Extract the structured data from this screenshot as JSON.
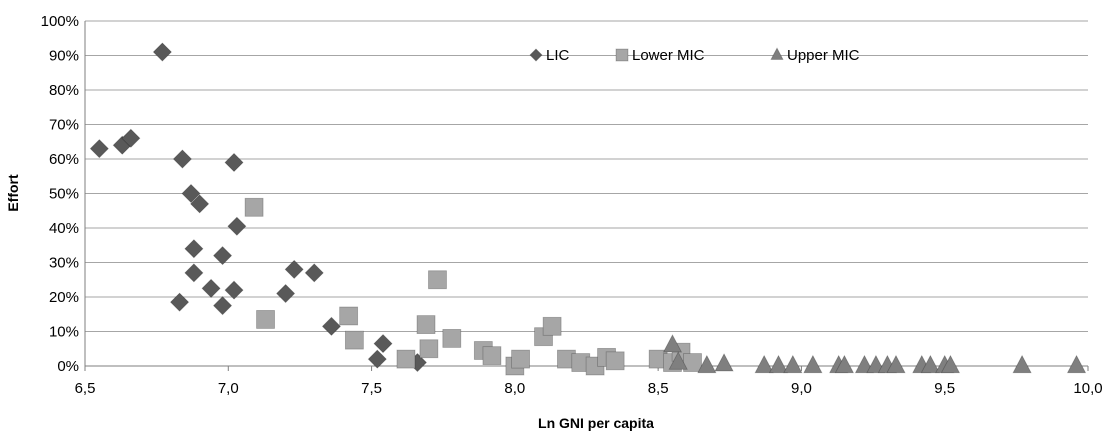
{
  "chart_data": {
    "type": "scatter",
    "xlabel": "Ln GNI per capita",
    "ylabel": "Effort",
    "xlim": [
      6.5,
      10.0
    ],
    "ylim": [
      0,
      100
    ],
    "x_ticks": [
      "6,5",
      "7,0",
      "7,5",
      "8,0",
      "8,5",
      "9,0",
      "9,5",
      "10,0"
    ],
    "y_ticks": [
      "0%",
      "10%",
      "20%",
      "30%",
      "40%",
      "50%",
      "60%",
      "70%",
      "80%",
      "90%",
      "100%"
    ],
    "grid": "horizontal",
    "legend_position": "top-right",
    "series": [
      {
        "name": "LIC",
        "marker": "diamond",
        "color": "#595959",
        "points": [
          [
            6.55,
            63
          ],
          [
            6.63,
            64
          ],
          [
            6.66,
            66
          ],
          [
            6.77,
            91
          ],
          [
            6.84,
            60
          ],
          [
            6.87,
            50
          ],
          [
            6.9,
            47
          ],
          [
            6.88,
            34
          ],
          [
            6.88,
            27
          ],
          [
            6.83,
            18.5
          ],
          [
            6.94,
            22.5
          ],
          [
            6.98,
            32
          ],
          [
            6.98,
            17.5
          ],
          [
            7.02,
            59
          ],
          [
            7.03,
            40.5
          ],
          [
            7.02,
            22
          ],
          [
            7.2,
            21
          ],
          [
            7.23,
            28
          ],
          [
            7.3,
            27
          ],
          [
            7.36,
            11.5
          ],
          [
            7.52,
            2
          ],
          [
            7.54,
            6.5
          ],
          [
            7.66,
            1
          ]
        ]
      },
      {
        "name": "Lower MIC",
        "marker": "square",
        "color": "#a6a6a6",
        "points": [
          [
            7.09,
            46
          ],
          [
            7.13,
            13.5
          ],
          [
            7.42,
            14.5
          ],
          [
            7.44,
            7.5
          ],
          [
            7.62,
            2
          ],
          [
            7.69,
            12
          ],
          [
            7.7,
            5
          ],
          [
            7.73,
            25
          ],
          [
            7.78,
            8
          ],
          [
            7.89,
            4.5
          ],
          [
            7.92,
            3
          ],
          [
            8.0,
            0
          ],
          [
            8.02,
            2
          ],
          [
            8.1,
            8.5
          ],
          [
            8.13,
            11.5
          ],
          [
            8.18,
            2
          ],
          [
            8.23,
            1
          ],
          [
            8.28,
            0
          ],
          [
            8.32,
            2.5
          ],
          [
            8.35,
            1.5
          ],
          [
            8.5,
            2
          ],
          [
            8.55,
            1
          ],
          [
            8.58,
            4
          ],
          [
            8.62,
            1
          ]
        ]
      },
      {
        "name": "Upper MIC",
        "marker": "triangle",
        "color": "#7f7f7f",
        "points": [
          [
            8.55,
            6
          ],
          [
            8.57,
            1
          ],
          [
            8.67,
            0
          ],
          [
            8.73,
            0.5
          ],
          [
            8.87,
            0
          ],
          [
            8.92,
            0
          ],
          [
            8.97,
            0
          ],
          [
            9.04,
            0
          ],
          [
            9.13,
            0
          ],
          [
            9.15,
            0
          ],
          [
            9.22,
            0
          ],
          [
            9.26,
            0
          ],
          [
            9.3,
            0
          ],
          [
            9.33,
            0
          ],
          [
            9.42,
            0
          ],
          [
            9.45,
            0
          ],
          [
            9.5,
            0
          ],
          [
            9.52,
            0
          ],
          [
            9.77,
            0
          ],
          [
            9.96,
            0
          ]
        ]
      }
    ]
  }
}
